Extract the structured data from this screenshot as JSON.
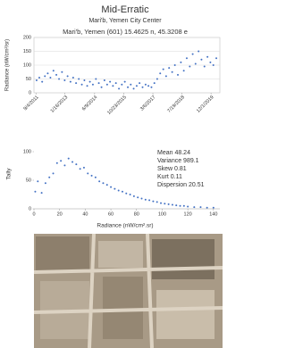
{
  "title": "Mid-Erratic",
  "subtitle": "Mari'b, Yemen City Center",
  "chart_data": [
    {
      "type": "scatter",
      "title": "Mari'b, Yemen (601) 15.4625 n, 45.3208 e",
      "y_label": "Radiance (nW/cm²/sr)",
      "color": "#4472c4",
      "xlim": [
        "8/1/2011",
        "5/1/2020"
      ],
      "xticks": [
        "9/4/2011",
        "1/16/2013",
        "6/9/2014",
        "10/23/2015",
        "3/6/2017",
        "7/19/2018",
        "12/1/2019"
      ],
      "ylim": [
        0,
        200
      ],
      "yticks": [
        0,
        50,
        100,
        150,
        200
      ],
      "grid": true,
      "x": [
        "9/15/2011",
        "11/1/2011",
        "12/20/2011",
        "2/5/2012",
        "3/25/2012",
        "5/10/2012",
        "7/1/2012",
        "8/20/2012",
        "10/5/2012",
        "11/25/2012",
        "1/10/2013",
        "3/1/2013",
        "4/20/2013",
        "6/5/2013",
        "7/25/2013",
        "9/10/2013",
        "11/1/2013",
        "12/15/2013",
        "2/1/2014",
        "3/20/2014",
        "5/10/2014",
        "7/1/2014",
        "8/20/2014",
        "10/5/2014",
        "11/25/2014",
        "1/10/2015",
        "3/1/2015",
        "4/20/2015",
        "6/10/2015",
        "8/1/2015",
        "9/20/2015",
        "11/10/2015",
        "1/1/2016",
        "2/20/2016",
        "4/10/2016",
        "6/1/2016",
        "7/20/2016",
        "9/10/2016",
        "11/1/2016",
        "12/20/2016",
        "2/10/2017",
        "4/1/2017",
        "5/20/2017",
        "7/10/2017",
        "9/1/2017",
        "10/20/2017",
        "12/10/2017",
        "2/1/2018",
        "3/20/2018",
        "5/10/2018",
        "7/1/2018",
        "8/20/2018",
        "10/10/2018",
        "12/1/2018",
        "1/20/2019",
        "3/10/2019",
        "5/1/2019",
        "6/20/2019",
        "8/10/2019",
        "10/1/2019",
        "11/20/2019",
        "1/10/2020",
        "3/1/2020"
      ],
      "values": [
        45,
        55,
        40,
        60,
        70,
        55,
        80,
        65,
        50,
        75,
        45,
        60,
        40,
        55,
        35,
        50,
        30,
        45,
        25,
        40,
        30,
        50,
        35,
        20,
        45,
        30,
        40,
        25,
        35,
        15,
        30,
        40,
        20,
        30,
        15,
        25,
        35,
        20,
        30,
        25,
        20,
        35,
        50,
        70,
        85,
        60,
        90,
        75,
        100,
        65,
        110,
        80,
        125,
        95,
        140,
        105,
        150,
        120,
        95,
        130,
        110,
        100,
        125
      ]
    },
    {
      "type": "scatter",
      "x_label": "Radiance (nW/cm².sr)",
      "y_label": "Tally",
      "color": "#4472c4",
      "xlim": [
        0,
        145
      ],
      "xticks": [
        0,
        20,
        40,
        60,
        80,
        100,
        120,
        140
      ],
      "ylim": [
        0,
        100
      ],
      "yticks": [
        0,
        50,
        100
      ],
      "grid": false,
      "annotations": [
        "Mean 48.24",
        "Variance 989.1",
        "Skew 0.81",
        "Kurt 0.11",
        "Dispersion 20.51"
      ],
      "x": [
        1,
        3,
        6,
        9,
        12,
        15,
        18,
        21,
        24,
        27,
        30,
        33,
        36,
        39,
        42,
        45,
        48,
        51,
        54,
        57,
        60,
        63,
        66,
        69,
        72,
        75,
        78,
        81,
        84,
        87,
        90,
        93,
        96,
        99,
        102,
        105,
        108,
        111,
        114,
        117,
        120,
        125,
        130,
        135,
        140
      ],
      "values": [
        30,
        48,
        28,
        45,
        55,
        62,
        80,
        84,
        76,
        88,
        82,
        78,
        70,
        72,
        62,
        58,
        55,
        48,
        45,
        42,
        38,
        35,
        32,
        30,
        27,
        25,
        22,
        20,
        18,
        16,
        15,
        13,
        12,
        10,
        9,
        8,
        7,
        6,
        5,
        5,
        4,
        3,
        3,
        2,
        2
      ]
    }
  ]
}
